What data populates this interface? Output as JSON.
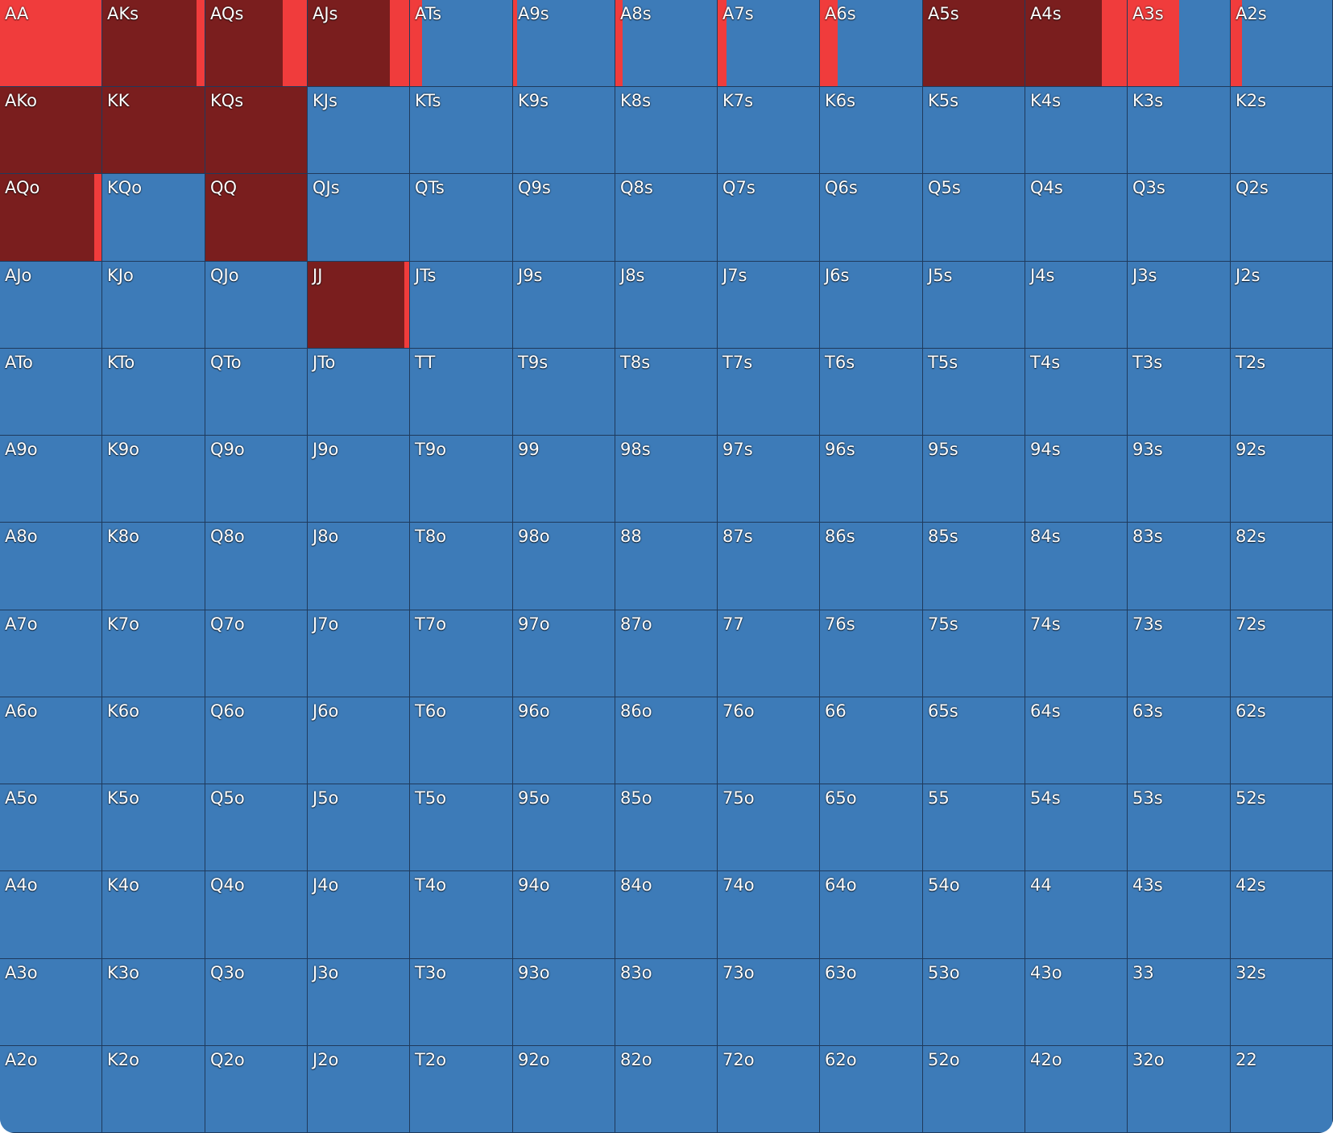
{
  "colors": {
    "raise": "#7a1e1e",
    "call": "#f03c3c",
    "fold": "#3d7bb8",
    "border": "#1f3a5c"
  },
  "grid": {
    "rows": [
      [
        {
          "hand": "AA",
          "raise": 0,
          "call": 1
        },
        {
          "hand": "AKs",
          "raise": 0.92,
          "call": 0.08
        },
        {
          "hand": "AQs",
          "raise": 0.76,
          "call": 0.24
        },
        {
          "hand": "AJs",
          "raise": 0.81,
          "call": 0.19
        },
        {
          "hand": "ATs",
          "raise": 0,
          "call": 0.12
        },
        {
          "hand": "A9s",
          "raise": 0,
          "call": 0.04
        },
        {
          "hand": "A8s",
          "raise": 0,
          "call": 0.07
        },
        {
          "hand": "A7s",
          "raise": 0,
          "call": 0.09
        },
        {
          "hand": "A6s",
          "raise": 0,
          "call": 0.17
        },
        {
          "hand": "A5s",
          "raise": 1,
          "call": 0
        },
        {
          "hand": "A4s",
          "raise": 0.75,
          "call": 0.25
        },
        {
          "hand": "A3s",
          "raise": 0,
          "call": 0.5
        },
        {
          "hand": "A2s",
          "raise": 0,
          "call": 0.11
        }
      ],
      [
        {
          "hand": "AKo",
          "raise": 1,
          "call": 0
        },
        {
          "hand": "KK",
          "raise": 1,
          "call": 0
        },
        {
          "hand": "KQs",
          "raise": 1,
          "call": 0
        },
        {
          "hand": "KJs",
          "raise": 0,
          "call": 0
        },
        {
          "hand": "KTs",
          "raise": 0,
          "call": 0
        },
        {
          "hand": "K9s",
          "raise": 0,
          "call": 0
        },
        {
          "hand": "K8s",
          "raise": 0,
          "call": 0
        },
        {
          "hand": "K7s",
          "raise": 0,
          "call": 0
        },
        {
          "hand": "K6s",
          "raise": 0,
          "call": 0
        },
        {
          "hand": "K5s",
          "raise": 0,
          "call": 0
        },
        {
          "hand": "K4s",
          "raise": 0,
          "call": 0
        },
        {
          "hand": "K3s",
          "raise": 0,
          "call": 0
        },
        {
          "hand": "K2s",
          "raise": 0,
          "call": 0
        }
      ],
      [
        {
          "hand": "AQo",
          "raise": 0.93,
          "call": 0.07
        },
        {
          "hand": "KQo",
          "raise": 0,
          "call": 0
        },
        {
          "hand": "QQ",
          "raise": 1,
          "call": 0
        },
        {
          "hand": "QJs",
          "raise": 0,
          "call": 0
        },
        {
          "hand": "QTs",
          "raise": 0,
          "call": 0
        },
        {
          "hand": "Q9s",
          "raise": 0,
          "call": 0
        },
        {
          "hand": "Q8s",
          "raise": 0,
          "call": 0
        },
        {
          "hand": "Q7s",
          "raise": 0,
          "call": 0
        },
        {
          "hand": "Q6s",
          "raise": 0,
          "call": 0
        },
        {
          "hand": "Q5s",
          "raise": 0,
          "call": 0
        },
        {
          "hand": "Q4s",
          "raise": 0,
          "call": 0
        },
        {
          "hand": "Q3s",
          "raise": 0,
          "call": 0
        },
        {
          "hand": "Q2s",
          "raise": 0,
          "call": 0
        }
      ],
      [
        {
          "hand": "AJo",
          "raise": 0,
          "call": 0
        },
        {
          "hand": "KJo",
          "raise": 0,
          "call": 0
        },
        {
          "hand": "QJo",
          "raise": 0,
          "call": 0
        },
        {
          "hand": "JJ",
          "raise": 0.95,
          "call": 0.05
        },
        {
          "hand": "JTs",
          "raise": 0,
          "call": 0
        },
        {
          "hand": "J9s",
          "raise": 0,
          "call": 0
        },
        {
          "hand": "J8s",
          "raise": 0,
          "call": 0
        },
        {
          "hand": "J7s",
          "raise": 0,
          "call": 0
        },
        {
          "hand": "J6s",
          "raise": 0,
          "call": 0
        },
        {
          "hand": "J5s",
          "raise": 0,
          "call": 0
        },
        {
          "hand": "J4s",
          "raise": 0,
          "call": 0
        },
        {
          "hand": "J3s",
          "raise": 0,
          "call": 0
        },
        {
          "hand": "J2s",
          "raise": 0,
          "call": 0
        }
      ],
      [
        {
          "hand": "ATo",
          "raise": 0,
          "call": 0
        },
        {
          "hand": "KTo",
          "raise": 0,
          "call": 0
        },
        {
          "hand": "QTo",
          "raise": 0,
          "call": 0
        },
        {
          "hand": "JTo",
          "raise": 0,
          "call": 0
        },
        {
          "hand": "TT",
          "raise": 0,
          "call": 0
        },
        {
          "hand": "T9s",
          "raise": 0,
          "call": 0
        },
        {
          "hand": "T8s",
          "raise": 0,
          "call": 0
        },
        {
          "hand": "T7s",
          "raise": 0,
          "call": 0
        },
        {
          "hand": "T6s",
          "raise": 0,
          "call": 0
        },
        {
          "hand": "T5s",
          "raise": 0,
          "call": 0
        },
        {
          "hand": "T4s",
          "raise": 0,
          "call": 0
        },
        {
          "hand": "T3s",
          "raise": 0,
          "call": 0
        },
        {
          "hand": "T2s",
          "raise": 0,
          "call": 0
        }
      ],
      [
        {
          "hand": "A9o",
          "raise": 0,
          "call": 0
        },
        {
          "hand": "K9o",
          "raise": 0,
          "call": 0
        },
        {
          "hand": "Q9o",
          "raise": 0,
          "call": 0
        },
        {
          "hand": "J9o",
          "raise": 0,
          "call": 0
        },
        {
          "hand": "T9o",
          "raise": 0,
          "call": 0
        },
        {
          "hand": "99",
          "raise": 0,
          "call": 0
        },
        {
          "hand": "98s",
          "raise": 0,
          "call": 0
        },
        {
          "hand": "97s",
          "raise": 0,
          "call": 0
        },
        {
          "hand": "96s",
          "raise": 0,
          "call": 0
        },
        {
          "hand": "95s",
          "raise": 0,
          "call": 0
        },
        {
          "hand": "94s",
          "raise": 0,
          "call": 0
        },
        {
          "hand": "93s",
          "raise": 0,
          "call": 0
        },
        {
          "hand": "92s",
          "raise": 0,
          "call": 0
        }
      ],
      [
        {
          "hand": "A8o",
          "raise": 0,
          "call": 0
        },
        {
          "hand": "K8o",
          "raise": 0,
          "call": 0
        },
        {
          "hand": "Q8o",
          "raise": 0,
          "call": 0
        },
        {
          "hand": "J8o",
          "raise": 0,
          "call": 0
        },
        {
          "hand": "T8o",
          "raise": 0,
          "call": 0
        },
        {
          "hand": "98o",
          "raise": 0,
          "call": 0
        },
        {
          "hand": "88",
          "raise": 0,
          "call": 0
        },
        {
          "hand": "87s",
          "raise": 0,
          "call": 0
        },
        {
          "hand": "86s",
          "raise": 0,
          "call": 0
        },
        {
          "hand": "85s",
          "raise": 0,
          "call": 0
        },
        {
          "hand": "84s",
          "raise": 0,
          "call": 0
        },
        {
          "hand": "83s",
          "raise": 0,
          "call": 0
        },
        {
          "hand": "82s",
          "raise": 0,
          "call": 0
        }
      ],
      [
        {
          "hand": "A7o",
          "raise": 0,
          "call": 0
        },
        {
          "hand": "K7o",
          "raise": 0,
          "call": 0
        },
        {
          "hand": "Q7o",
          "raise": 0,
          "call": 0
        },
        {
          "hand": "J7o",
          "raise": 0,
          "call": 0
        },
        {
          "hand": "T7o",
          "raise": 0,
          "call": 0
        },
        {
          "hand": "97o",
          "raise": 0,
          "call": 0
        },
        {
          "hand": "87o",
          "raise": 0,
          "call": 0
        },
        {
          "hand": "77",
          "raise": 0,
          "call": 0
        },
        {
          "hand": "76s",
          "raise": 0,
          "call": 0
        },
        {
          "hand": "75s",
          "raise": 0,
          "call": 0
        },
        {
          "hand": "74s",
          "raise": 0,
          "call": 0
        },
        {
          "hand": "73s",
          "raise": 0,
          "call": 0
        },
        {
          "hand": "72s",
          "raise": 0,
          "call": 0
        }
      ],
      [
        {
          "hand": "A6o",
          "raise": 0,
          "call": 0
        },
        {
          "hand": "K6o",
          "raise": 0,
          "call": 0
        },
        {
          "hand": "Q6o",
          "raise": 0,
          "call": 0
        },
        {
          "hand": "J6o",
          "raise": 0,
          "call": 0
        },
        {
          "hand": "T6o",
          "raise": 0,
          "call": 0
        },
        {
          "hand": "96o",
          "raise": 0,
          "call": 0
        },
        {
          "hand": "86o",
          "raise": 0,
          "call": 0
        },
        {
          "hand": "76o",
          "raise": 0,
          "call": 0
        },
        {
          "hand": "66",
          "raise": 0,
          "call": 0
        },
        {
          "hand": "65s",
          "raise": 0,
          "call": 0
        },
        {
          "hand": "64s",
          "raise": 0,
          "call": 0
        },
        {
          "hand": "63s",
          "raise": 0,
          "call": 0
        },
        {
          "hand": "62s",
          "raise": 0,
          "call": 0
        }
      ],
      [
        {
          "hand": "A5o",
          "raise": 0,
          "call": 0
        },
        {
          "hand": "K5o",
          "raise": 0,
          "call": 0
        },
        {
          "hand": "Q5o",
          "raise": 0,
          "call": 0
        },
        {
          "hand": "J5o",
          "raise": 0,
          "call": 0
        },
        {
          "hand": "T5o",
          "raise": 0,
          "call": 0
        },
        {
          "hand": "95o",
          "raise": 0,
          "call": 0
        },
        {
          "hand": "85o",
          "raise": 0,
          "call": 0
        },
        {
          "hand": "75o",
          "raise": 0,
          "call": 0
        },
        {
          "hand": "65o",
          "raise": 0,
          "call": 0
        },
        {
          "hand": "55",
          "raise": 0,
          "call": 0
        },
        {
          "hand": "54s",
          "raise": 0,
          "call": 0
        },
        {
          "hand": "53s",
          "raise": 0,
          "call": 0
        },
        {
          "hand": "52s",
          "raise": 0,
          "call": 0
        }
      ],
      [
        {
          "hand": "A4o",
          "raise": 0,
          "call": 0
        },
        {
          "hand": "K4o",
          "raise": 0,
          "call": 0
        },
        {
          "hand": "Q4o",
          "raise": 0,
          "call": 0
        },
        {
          "hand": "J4o",
          "raise": 0,
          "call": 0
        },
        {
          "hand": "T4o",
          "raise": 0,
          "call": 0
        },
        {
          "hand": "94o",
          "raise": 0,
          "call": 0
        },
        {
          "hand": "84o",
          "raise": 0,
          "call": 0
        },
        {
          "hand": "74o",
          "raise": 0,
          "call": 0
        },
        {
          "hand": "64o",
          "raise": 0,
          "call": 0
        },
        {
          "hand": "54o",
          "raise": 0,
          "call": 0
        },
        {
          "hand": "44",
          "raise": 0,
          "call": 0
        },
        {
          "hand": "43s",
          "raise": 0,
          "call": 0
        },
        {
          "hand": "42s",
          "raise": 0,
          "call": 0
        }
      ],
      [
        {
          "hand": "A3o",
          "raise": 0,
          "call": 0
        },
        {
          "hand": "K3o",
          "raise": 0,
          "call": 0
        },
        {
          "hand": "Q3o",
          "raise": 0,
          "call": 0
        },
        {
          "hand": "J3o",
          "raise": 0,
          "call": 0
        },
        {
          "hand": "T3o",
          "raise": 0,
          "call": 0
        },
        {
          "hand": "93o",
          "raise": 0,
          "call": 0
        },
        {
          "hand": "83o",
          "raise": 0,
          "call": 0
        },
        {
          "hand": "73o",
          "raise": 0,
          "call": 0
        },
        {
          "hand": "63o",
          "raise": 0,
          "call": 0
        },
        {
          "hand": "53o",
          "raise": 0,
          "call": 0
        },
        {
          "hand": "43o",
          "raise": 0,
          "call": 0
        },
        {
          "hand": "33",
          "raise": 0,
          "call": 0
        },
        {
          "hand": "32s",
          "raise": 0,
          "call": 0
        }
      ],
      [
        {
          "hand": "A2o",
          "raise": 0,
          "call": 0
        },
        {
          "hand": "K2o",
          "raise": 0,
          "call": 0
        },
        {
          "hand": "Q2o",
          "raise": 0,
          "call": 0
        },
        {
          "hand": "J2o",
          "raise": 0,
          "call": 0
        },
        {
          "hand": "T2o",
          "raise": 0,
          "call": 0
        },
        {
          "hand": "92o",
          "raise": 0,
          "call": 0
        },
        {
          "hand": "82o",
          "raise": 0,
          "call": 0
        },
        {
          "hand": "72o",
          "raise": 0,
          "call": 0
        },
        {
          "hand": "62o",
          "raise": 0,
          "call": 0
        },
        {
          "hand": "52o",
          "raise": 0,
          "call": 0
        },
        {
          "hand": "42o",
          "raise": 0,
          "call": 0
        },
        {
          "hand": "32o",
          "raise": 0,
          "call": 0
        },
        {
          "hand": "22",
          "raise": 0,
          "call": 0
        }
      ]
    ]
  }
}
